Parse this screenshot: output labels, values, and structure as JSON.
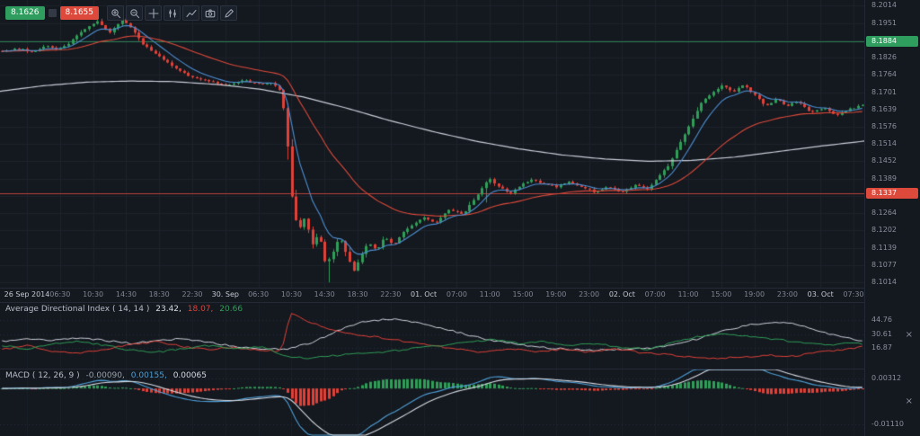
{
  "toolbar": {
    "sell_price": "8.1626",
    "buy_price": "8.1655",
    "buttons": [
      "zoom-in",
      "zoom-out",
      "crosshair",
      "chart-type",
      "indicators",
      "snapshot",
      "draw"
    ]
  },
  "panels": {
    "adx": {
      "title": "Average Directional Index ( 14, 14 )",
      "v1": "23.42,",
      "v2": "18.07,",
      "v3": "20.66",
      "close": "×"
    },
    "macd": {
      "title": "MACD ( 12, 26, 9 )",
      "v1": "-0.00090,",
      "v2": "0.00155,",
      "v3": "0.00065",
      "close": "×"
    }
  },
  "chart_data": [
    {
      "id": "price",
      "type": "candlestick",
      "timeframe_minutes": 30,
      "bid": 8.1626,
      "ask": 8.1655,
      "ylim": [
        8.0995,
        8.2035
      ],
      "candle_count": 209,
      "session_low": 8.1014,
      "session_high": 8.1986,
      "colors": {
        "up": "#2f9e57",
        "down": "#df4238",
        "ma_fast": "#4d8fd1",
        "ma_mid": "#dd4a3a",
        "ma_slow": "#c9ced8"
      },
      "ma_periods": {
        "blue": 8,
        "red": 34
      },
      "price_ticks": [
        {
          "p": 8.2014,
          "l": "8.2014"
        },
        {
          "p": 8.1951,
          "l": "8.1951"
        },
        {
          "p": 8.1889,
          "l": ""
        },
        {
          "p": 8.1826,
          "l": "8.1826"
        },
        {
          "p": 8.1764,
          "l": "8.1764"
        },
        {
          "p": 8.1701,
          "l": "8.1701"
        },
        {
          "p": 8.1639,
          "l": "8.1639"
        },
        {
          "p": 8.1576,
          "l": "8.1576"
        },
        {
          "p": 8.1514,
          "l": "8.1514"
        },
        {
          "p": 8.1452,
          "l": "8.1452"
        },
        {
          "p": 8.1389,
          "l": "8.1389"
        },
        {
          "p": 8.1326,
          "l": ""
        },
        {
          "p": 8.1264,
          "l": "8.1264"
        },
        {
          "p": 8.1202,
          "l": "8.1202"
        },
        {
          "p": 8.1139,
          "l": "8.1139"
        },
        {
          "p": 8.1077,
          "l": "8.1077"
        },
        {
          "p": 8.1014,
          "l": "8.1014"
        }
      ],
      "levels": [
        {
          "name": "upper-level",
          "price": 8.1884,
          "label": "8.1884",
          "line_color": "#2c7f52",
          "badge_color": "#2e9d5e"
        },
        {
          "name": "lower-level",
          "price": 8.1337,
          "label": "8.1337",
          "line_color": "#b8423a",
          "badge_color": "#dd4a3c"
        }
      ],
      "time_labels": [
        "26 Sep 2014",
        "06:30",
        "10:30",
        "14:30",
        "18:30",
        "22:30",
        "30. Sep",
        "06:30",
        "10:30",
        "14:30",
        "18:30",
        "22:30",
        "01. Oct",
        "07:00",
        "11:00",
        "15:00",
        "19:00",
        "23:00",
        "02. Oct",
        "07:00",
        "11:00",
        "15:00",
        "19:00",
        "23:00",
        "03. Oct",
        "07:30"
      ],
      "close_path": [
        [
          0,
          8.185
        ],
        [
          0.02,
          8.186
        ],
        [
          0.035,
          8.1845
        ],
        [
          0.05,
          8.187
        ],
        [
          0.065,
          8.1855
        ],
        [
          0.08,
          8.1885
        ],
        [
          0.095,
          8.193
        ],
        [
          0.11,
          8.196
        ],
        [
          0.125,
          8.192
        ],
        [
          0.14,
          8.1965
        ],
        [
          0.15,
          8.193
        ],
        [
          0.165,
          8.187
        ],
        [
          0.18,
          8.1835
        ],
        [
          0.2,
          8.179
        ],
        [
          0.22,
          8.1755
        ],
        [
          0.24,
          8.174
        ],
        [
          0.26,
          8.1725
        ],
        [
          0.28,
          8.1745
        ],
        [
          0.3,
          8.173
        ],
        [
          0.315,
          8.1735
        ],
        [
          0.325,
          8.17
        ],
        [
          0.332,
          8.15
        ],
        [
          0.338,
          8.127
        ],
        [
          0.345,
          8.121
        ],
        [
          0.352,
          8.125
        ],
        [
          0.36,
          8.115
        ],
        [
          0.368,
          8.119
        ],
        [
          0.376,
          8.108
        ],
        [
          0.384,
          8.112
        ],
        [
          0.392,
          8.118
        ],
        [
          0.4,
          8.112
        ],
        [
          0.408,
          8.105
        ],
        [
          0.416,
          8.11
        ],
        [
          0.425,
          8.116
        ],
        [
          0.435,
          8.113
        ],
        [
          0.445,
          8.118
        ],
        [
          0.455,
          8.115
        ],
        [
          0.465,
          8.119
        ],
        [
          0.475,
          8.122
        ],
        [
          0.49,
          8.125
        ],
        [
          0.505,
          8.123
        ],
        [
          0.52,
          8.128
        ],
        [
          0.535,
          8.126
        ],
        [
          0.55,
          8.132
        ],
        [
          0.565,
          8.139
        ],
        [
          0.578,
          8.136
        ],
        [
          0.59,
          8.133
        ],
        [
          0.6,
          8.136
        ],
        [
          0.615,
          8.1385
        ],
        [
          0.63,
          8.137
        ],
        [
          0.645,
          8.136
        ],
        [
          0.66,
          8.138
        ],
        [
          0.675,
          8.1355
        ],
        [
          0.69,
          8.134
        ],
        [
          0.705,
          8.136
        ],
        [
          0.72,
          8.134
        ],
        [
          0.735,
          8.1365
        ],
        [
          0.75,
          8.135
        ],
        [
          0.762,
          8.139
        ],
        [
          0.775,
          8.144
        ],
        [
          0.788,
          8.152
        ],
        [
          0.8,
          8.159
        ],
        [
          0.812,
          8.166
        ],
        [
          0.825,
          8.17
        ],
        [
          0.838,
          8.173
        ],
        [
          0.85,
          8.17
        ],
        [
          0.862,
          8.173
        ],
        [
          0.875,
          8.169
        ],
        [
          0.888,
          8.165
        ],
        [
          0.9,
          8.168
        ],
        [
          0.912,
          8.165
        ],
        [
          0.925,
          8.167
        ],
        [
          0.94,
          8.163
        ],
        [
          0.955,
          8.1645
        ],
        [
          0.97,
          8.162
        ],
        [
          0.985,
          8.164
        ],
        [
          1,
          8.1655
        ]
      ],
      "ma_slow_path": [
        [
          0,
          8.1705
        ],
        [
          0.05,
          8.1725
        ],
        [
          0.1,
          8.1738
        ],
        [
          0.15,
          8.1742
        ],
        [
          0.2,
          8.174
        ],
        [
          0.25,
          8.173
        ],
        [
          0.3,
          8.1713
        ],
        [
          0.35,
          8.1685
        ],
        [
          0.4,
          8.1645
        ],
        [
          0.45,
          8.16
        ],
        [
          0.5,
          8.156
        ],
        [
          0.55,
          8.1525
        ],
        [
          0.6,
          8.1497
        ],
        [
          0.65,
          8.1475
        ],
        [
          0.7,
          8.146
        ],
        [
          0.75,
          8.1452
        ],
        [
          0.8,
          8.1455
        ],
        [
          0.85,
          8.1467
        ],
        [
          0.9,
          8.1487
        ],
        [
          0.95,
          8.1507
        ],
        [
          1,
          8.1525
        ]
      ]
    },
    {
      "id": "adx",
      "type": "line",
      "title": "Average Directional Index ( 14, 14 )",
      "current": [
        23.42,
        18.07,
        20.66
      ],
      "ylim": [
        0,
        55
      ],
      "ticks": [
        {
          "v": 44.76,
          "l": "44.76"
        },
        {
          "v": 30.61,
          "l": "30.61"
        },
        {
          "v": 16.87,
          "l": "16.87"
        }
      ],
      "series": [
        {
          "name": "ADX",
          "color": "#cfd3dc",
          "path": [
            [
              0,
              23
            ],
            [
              0.03,
              26
            ],
            [
              0.06,
              24
            ],
            [
              0.09,
              27
            ],
            [
              0.12,
              24
            ],
            [
              0.15,
              21
            ],
            [
              0.18,
              24
            ],
            [
              0.21,
              26
            ],
            [
              0.24,
              22
            ],
            [
              0.27,
              18
            ],
            [
              0.3,
              16
            ],
            [
              0.33,
              15
            ],
            [
              0.36,
              22
            ],
            [
              0.39,
              34
            ],
            [
              0.42,
              43
            ],
            [
              0.45,
              46
            ],
            [
              0.48,
              43
            ],
            [
              0.51,
              37
            ],
            [
              0.54,
              30
            ],
            [
              0.57,
              24
            ],
            [
              0.6,
              20
            ],
            [
              0.63,
              17
            ],
            [
              0.66,
              15
            ],
            [
              0.69,
              14
            ],
            [
              0.72,
              15
            ],
            [
              0.75,
              16
            ],
            [
              0.78,
              19
            ],
            [
              0.81,
              26
            ],
            [
              0.84,
              34
            ],
            [
              0.87,
              40
            ],
            [
              0.9,
              43
            ],
            [
              0.92,
              41
            ],
            [
              0.94,
              36
            ],
            [
              0.96,
              31
            ],
            [
              0.98,
              27
            ],
            [
              1,
              23.42
            ]
          ]
        },
        {
          "name": "minus-DI",
          "color": "#df4238",
          "path": [
            [
              0,
              15
            ],
            [
              0.03,
              19
            ],
            [
              0.06,
              13
            ],
            [
              0.09,
              11
            ],
            [
              0.12,
              15
            ],
            [
              0.15,
              20
            ],
            [
              0.18,
              23
            ],
            [
              0.21,
              18
            ],
            [
              0.24,
              15
            ],
            [
              0.27,
              17
            ],
            [
              0.3,
              14
            ],
            [
              0.325,
              13
            ],
            [
              0.335,
              52
            ],
            [
              0.355,
              44
            ],
            [
              0.38,
              36
            ],
            [
              0.41,
              30
            ],
            [
              0.44,
              27
            ],
            [
              0.47,
              23
            ],
            [
              0.5,
              19
            ],
            [
              0.53,
              15
            ],
            [
              0.56,
              12
            ],
            [
              0.59,
              16
            ],
            [
              0.62,
              12
            ],
            [
              0.65,
              15
            ],
            [
              0.68,
              12
            ],
            [
              0.71,
              16
            ],
            [
              0.74,
              12
            ],
            [
              0.77,
              10
            ],
            [
              0.8,
              7
            ],
            [
              0.83,
              6
            ],
            [
              0.86,
              7
            ],
            [
              0.89,
              9
            ],
            [
              0.92,
              8
            ],
            [
              0.95,
              12
            ],
            [
              0.98,
              15
            ],
            [
              1,
              18.07
            ]
          ]
        },
        {
          "name": "plus-DI",
          "color": "#2f9e57",
          "path": [
            [
              0,
              19
            ],
            [
              0.03,
              15
            ],
            [
              0.06,
              21
            ],
            [
              0.09,
              23
            ],
            [
              0.12,
              19
            ],
            [
              0.15,
              14
            ],
            [
              0.18,
              12
            ],
            [
              0.21,
              16
            ],
            [
              0.24,
              19
            ],
            [
              0.27,
              15
            ],
            [
              0.3,
              18
            ],
            [
              0.33,
              8
            ],
            [
              0.36,
              6
            ],
            [
              0.39,
              9
            ],
            [
              0.42,
              11
            ],
            [
              0.45,
              13
            ],
            [
              0.48,
              16
            ],
            [
              0.51,
              19
            ],
            [
              0.54,
              22
            ],
            [
              0.57,
              25
            ],
            [
              0.6,
              21
            ],
            [
              0.63,
              23
            ],
            [
              0.66,
              19
            ],
            [
              0.69,
              21
            ],
            [
              0.72,
              17
            ],
            [
              0.75,
              15
            ],
            [
              0.78,
              22
            ],
            [
              0.81,
              28
            ],
            [
              0.84,
              31
            ],
            [
              0.87,
              28
            ],
            [
              0.9,
              25
            ],
            [
              0.93,
              22
            ],
            [
              0.96,
              19
            ],
            [
              0.98,
              21
            ],
            [
              1,
              20.66
            ]
          ]
        }
      ]
    },
    {
      "id": "macd",
      "type": "macd",
      "title": "MACD ( 12, 26, 9 )",
      "params": [
        12,
        26,
        9
      ],
      "current": [
        -0.0009,
        0.00155,
        0.00065
      ],
      "ylim": [
        -0.0135,
        0.005
      ],
      "ticks": [
        {
          "v": 0.00312,
          "l": "0.00312"
        },
        {
          "v": -0.0111,
          "l": "-0.01110"
        }
      ],
      "colors": {
        "macd": "#4d9fd6",
        "signal": "#d5dae2"
      }
    }
  ]
}
